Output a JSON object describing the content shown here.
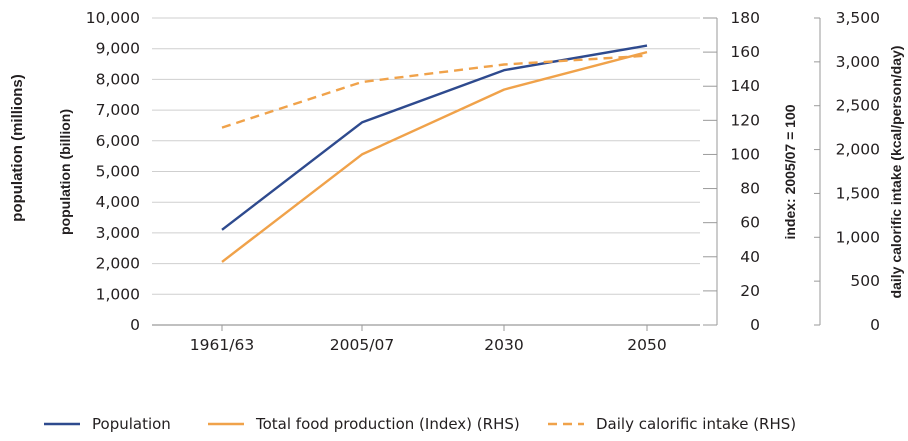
{
  "chart_data": {
    "type": "line",
    "categories": [
      "1961/63",
      "2005/07",
      "2030",
      "2050"
    ],
    "outer_label": "population (millions)",
    "axes": {
      "left": {
        "label": "population (billion)",
        "ylim": [
          0,
          10000
        ],
        "ticks": [
          "0",
          "1,000",
          "2,000",
          "3,000",
          "4,000",
          "5,000",
          "6,000",
          "7,000",
          "8,000",
          "9,000",
          "10,000"
        ]
      },
      "index": {
        "label": "index: 2005/07 = 100",
        "ylim": [
          0,
          180
        ],
        "ticks": [
          "0",
          "20",
          "40",
          "60",
          "80",
          "100",
          "120",
          "140",
          "160",
          "180"
        ]
      },
      "calorie": {
        "label": "daily calorific intake (kcal/person/day)",
        "ylim": [
          0,
          3500
        ],
        "ticks": [
          "0",
          "500",
          "1,000",
          "1,500",
          "2,000",
          "2,500",
          "3,000",
          "3,500"
        ]
      }
    },
    "series": [
      {
        "name": "Population",
        "axis": "left",
        "color": "#2e4a8e",
        "dash": "solid",
        "values": [
          3100,
          6600,
          8300,
          9100
        ]
      },
      {
        "name": "Total food production (Index) (RHS)",
        "axis": "index",
        "color": "#f0a24a",
        "dash": "solid",
        "values": [
          37,
          100,
          138,
          160
        ]
      },
      {
        "name": "Daily calorific intake (RHS)",
        "axis": "calorie",
        "color": "#f0a24a",
        "dash": "dashed",
        "values": [
          2250,
          2770,
          2970,
          3070
        ]
      }
    ],
    "grid": true,
    "legend": "bottom"
  }
}
